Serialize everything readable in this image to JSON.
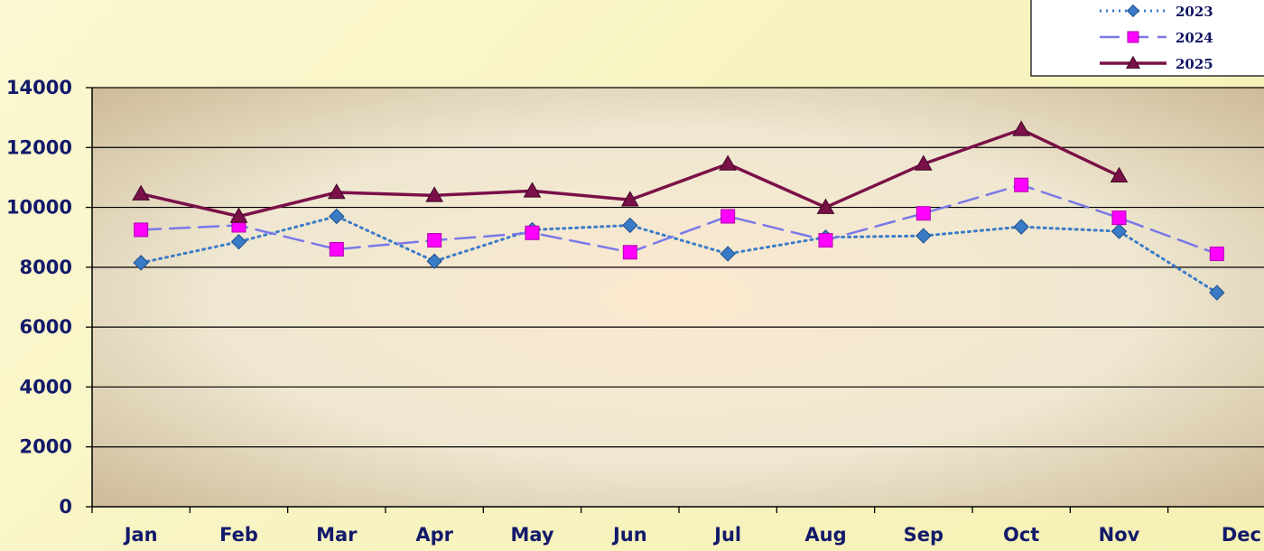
{
  "chart_data": {
    "type": "line",
    "categories": [
      "Jan",
      "Feb",
      "Mar",
      "Apr",
      "May",
      "Jun",
      "Jul",
      "Aug",
      "Sep",
      "Oct",
      "Nov",
      "Dec"
    ],
    "ylim": [
      0,
      14000
    ],
    "yticks": [
      0,
      2000,
      4000,
      6000,
      8000,
      10000,
      12000,
      14000
    ],
    "grid": true,
    "legend_position": "top-right",
    "series": [
      {
        "name": "2023",
        "color": "#3a7bc8",
        "marker": "diamond",
        "dash": "dotted",
        "values": [
          8150,
          8850,
          9700,
          8200,
          9250,
          9400,
          8450,
          9000,
          9050,
          9350,
          9200,
          7150
        ]
      },
      {
        "name": "2024",
        "color": "#ff00ff",
        "line_color": "#7a78e8",
        "marker": "square",
        "dash": "dashed",
        "values": [
          9250,
          9400,
          8600,
          8900,
          9150,
          8500,
          9700,
          8900,
          9800,
          10750,
          9650,
          8450
        ]
      },
      {
        "name": "2025",
        "color": "#7a1048",
        "marker": "triangle",
        "dash": "solid",
        "values": [
          10450,
          9700,
          10500,
          10400,
          10550,
          10250,
          11450,
          10000,
          11450,
          12600,
          11050,
          null
        ]
      }
    ]
  }
}
